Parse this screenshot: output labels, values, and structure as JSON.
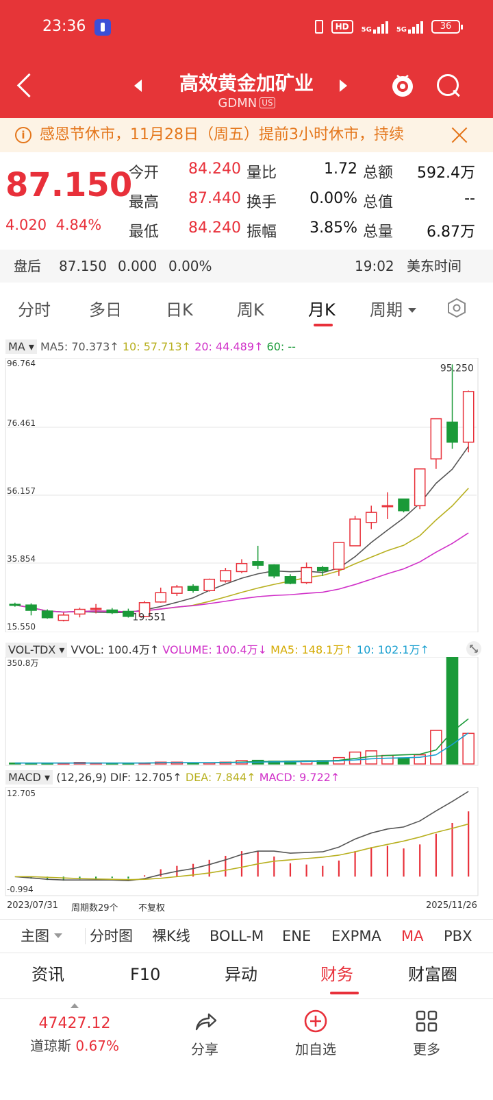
{
  "status": {
    "time": "23:36",
    "signal1": "5G",
    "signal2": "5G",
    "hd": "HD",
    "battery": "36"
  },
  "header": {
    "name": "高效黄金加矿业",
    "code": "GDMN",
    "market": "US"
  },
  "notice": {
    "text": "感恩节休市，11月28日（周五）提前3小时休市，持续"
  },
  "quote": {
    "price": "87.150",
    "change": "4.020",
    "change_pct": "4.84%",
    "fields": [
      {
        "label": "今开",
        "value": "84.240",
        "color": "red"
      },
      {
        "label": "量比",
        "value": "1.72",
        "color": "black"
      },
      {
        "label": "总额",
        "value": "592.4万",
        "color": "black"
      },
      {
        "label": "最高",
        "value": "87.440",
        "color": "red"
      },
      {
        "label": "换手",
        "value": "0.00%",
        "color": "black"
      },
      {
        "label": "总值",
        "value": "--",
        "color": "black"
      },
      {
        "label": "最低",
        "value": "84.240",
        "color": "red"
      },
      {
        "label": "振幅",
        "value": "3.85%",
        "color": "black"
      },
      {
        "label": "总量",
        "value": "6.87万",
        "color": "black"
      }
    ]
  },
  "after_hours": {
    "label": "盘后",
    "price": "87.150",
    "change": "0.000",
    "pct": "0.00%",
    "time": "19:02",
    "tz": "美东时间"
  },
  "tabs": [
    "分时",
    "多日",
    "日K",
    "周K",
    "月K",
    "周期"
  ],
  "indicators": {
    "ma": {
      "name": "MA",
      "ma5": "MA5: 70.373↑",
      "ma10": "10: 57.713↑",
      "ma20": "20: 44.489↑",
      "ma60": "60: --"
    },
    "vol": {
      "name": "VOL-TDX",
      "vvol": "VVOL: 100.4万↑",
      "volume": "VOLUME: 100.4万↓",
      "ma5": "MA5: 148.1万↑",
      "ma10": "10: 102.1万↑",
      "max": "350.8万"
    },
    "macd": {
      "name": "MACD",
      "params": "(12,26,9)",
      "dif": "DIF: 12.705↑",
      "dea": "DEA: 7.844↑",
      "macd": "MACD: 9.722↑",
      "top": "12.705",
      "bottom": "-0.994"
    }
  },
  "price_axis": [
    "96.764",
    "76.461",
    "56.157",
    "35.854",
    "15.550"
  ],
  "annotations": {
    "high": "95.250",
    "low": "19.551"
  },
  "footer": {
    "start": "2023/07/31",
    "count": "周期数29个",
    "adjust": "不复权",
    "end": "2025/11/26"
  },
  "indicator_bar": [
    "主图",
    "分时图",
    "裸K线",
    "BOLL-M",
    "ENE",
    "EXPMA",
    "MA",
    "PBX"
  ],
  "section_tabs": [
    "资讯",
    "F10",
    "异动",
    "财务",
    "财富圈"
  ],
  "bottom": {
    "index_value": "47427.12",
    "index_name": "道琼斯",
    "index_pct": "0.67%",
    "share": "分享",
    "add": "加自选",
    "more": "更多"
  },
  "colors": {
    "up": "#e8303a",
    "down": "#1a9a38",
    "ma5": "#555555",
    "ma10": "#b8b020",
    "ma20": "#d030c8",
    "ma60": "#1aa0d0",
    "header": "#e63538"
  },
  "chart_data": [
    {
      "type": "candlestick",
      "title": "",
      "period": "monthly",
      "ylim": [
        15.55,
        96.764
      ],
      "x": [
        "2023-07",
        "2023-08",
        "2023-09",
        "2023-10",
        "2023-11",
        "2023-12",
        "2024-01",
        "2024-02",
        "2024-03",
        "2024-04",
        "2024-05",
        "2024-06",
        "2024-07",
        "2024-08",
        "2024-09",
        "2024-10",
        "2024-11",
        "2024-12",
        "2025-01",
        "2025-02",
        "2025-03",
        "2025-04",
        "2025-05",
        "2025-06",
        "2025-07",
        "2025-08",
        "2025-09",
        "2025-10",
        "2025-11"
      ],
      "ohlc": [
        [
          23.5,
          24.0,
          22.8,
          23.3
        ],
        [
          23.3,
          23.8,
          20.2,
          21.7
        ],
        [
          21.5,
          22.0,
          19.2,
          19.5
        ],
        [
          18.7,
          21.0,
          18.4,
          20.3
        ],
        [
          20.6,
          22.5,
          19.6,
          22.0
        ],
        [
          22.0,
          23.6,
          20.8,
          22.3
        ],
        [
          21.8,
          22.4,
          20.6,
          21.0
        ],
        [
          21.4,
          22.2,
          19.551,
          19.9
        ],
        [
          19.9,
          24.5,
          19.7,
          24.0
        ],
        [
          24.2,
          28.5,
          24.0,
          27.0
        ],
        [
          26.8,
          29.3,
          26.0,
          28.7
        ],
        [
          28.9,
          29.5,
          27.0,
          27.6
        ],
        [
          27.6,
          31.2,
          27.3,
          31.0
        ],
        [
          30.5,
          34.4,
          30.0,
          33.6
        ],
        [
          33.3,
          37.0,
          32.8,
          35.7
        ],
        [
          36.3,
          41.0,
          34.0,
          35.2
        ],
        [
          35.3,
          35.5,
          31.3,
          32.0
        ],
        [
          31.8,
          32.5,
          29.5,
          29.8
        ],
        [
          30.0,
          36.0,
          29.6,
          34.5
        ],
        [
          34.5,
          35.0,
          32.0,
          33.5
        ],
        [
          34.0,
          42.0,
          32.0,
          42.0
        ],
        [
          41.0,
          50.0,
          41.0,
          49.0
        ],
        [
          48.0,
          53.0,
          46.0,
          51.0
        ],
        [
          53.0,
          57.0,
          49.0,
          53.0
        ],
        [
          55.0,
          54.5,
          51.0,
          51.5
        ],
        [
          53.0,
          64.0,
          52.0,
          64.0
        ],
        [
          67.0,
          79.0,
          64.0,
          79.0
        ],
        [
          78.0,
          95.25,
          70.0,
          72.0
        ],
        [
          72.0,
          87.44,
          69.0,
          87.15
        ]
      ]
    },
    {
      "type": "bar",
      "title": "VOL-TDX",
      "unit": "万",
      "ylim": [
        0,
        350.8
      ],
      "values": [
        3,
        2,
        2,
        2,
        5,
        3,
        2,
        2,
        3,
        6,
        6,
        4,
        4,
        6,
        11,
        12,
        9,
        9,
        10,
        11,
        21,
        39,
        43,
        28,
        20,
        30,
        110,
        350.8,
        100.4
      ],
      "ma5": [
        3,
        3,
        3,
        3,
        3,
        3,
        3,
        3,
        3,
        4,
        4,
        4,
        4,
        5,
        6,
        8,
        8,
        9,
        10,
        10,
        12,
        18,
        25,
        28,
        30,
        32,
        46,
        106,
        148.1
      ],
      "ma10": [
        3,
        3,
        3,
        3,
        3,
        3,
        3,
        3,
        3,
        4,
        4,
        4,
        4,
        4,
        5,
        6,
        7,
        7,
        8,
        9,
        10,
        13,
        17,
        19,
        20,
        22,
        30,
        64,
        102.1
      ]
    },
    {
      "type": "bar",
      "title": "MACD",
      "ylim": [
        -0.994,
        12.705
      ],
      "dif": [
        0,
        -0.2,
        -0.4,
        -0.5,
        -0.5,
        -0.5,
        -0.5,
        -0.6,
        -0.3,
        0.3,
        0.8,
        1.2,
        1.8,
        2.5,
        3.3,
        3.8,
        3.8,
        3.5,
        3.6,
        3.7,
        4.4,
        5.6,
        6.5,
        7.1,
        7.4,
        8.3,
        9.8,
        11.2,
        12.705
      ],
      "dea": [
        0,
        0,
        -0.1,
        -0.2,
        -0.3,
        -0.35,
        -0.4,
        -0.45,
        -0.4,
        -0.25,
        0,
        0.25,
        0.55,
        0.95,
        1.4,
        1.9,
        2.3,
        2.5,
        2.7,
        2.9,
        3.2,
        3.7,
        4.3,
        4.8,
        5.3,
        5.9,
        6.6,
        7.2,
        7.844
      ],
      "macd": [
        0,
        -0.3,
        -0.5,
        -0.6,
        -0.4,
        -0.3,
        -0.2,
        -0.3,
        0.2,
        1.1,
        1.6,
        1.9,
        2.5,
        3.1,
        3.8,
        3.8,
        3,
        2,
        1.8,
        1.6,
        2.4,
        3.8,
        4.4,
        4.6,
        4.2,
        4.8,
        6.4,
        8,
        9.722
      ]
    }
  ]
}
